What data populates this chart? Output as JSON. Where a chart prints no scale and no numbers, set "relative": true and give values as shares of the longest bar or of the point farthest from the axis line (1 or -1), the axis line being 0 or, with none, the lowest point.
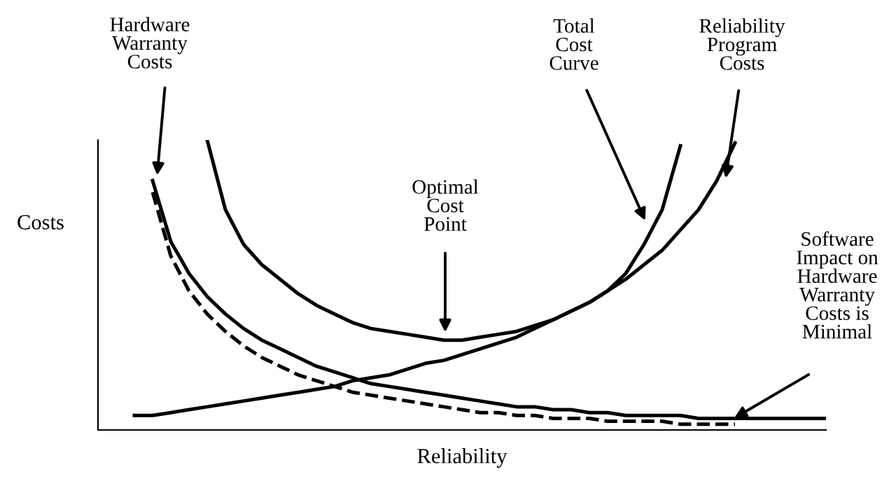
{
  "chart_data": {
    "type": "line",
    "relative": true,
    "xlabel": "Reliability",
    "ylabel": "Costs",
    "legend": false,
    "marker": "none",
    "categories": [
      null,
      null,
      null,
      null,
      null,
      null,
      null,
      null,
      null,
      null,
      null,
      null,
      null,
      null,
      null,
      null,
      null,
      null,
      null,
      null,
      null,
      null,
      null,
      null,
      null,
      null,
      null,
      null,
      null,
      null,
      null,
      null,
      null,
      null,
      null,
      null,
      null,
      null,
      null,
      null,
      null
    ],
    "series": [
      {
        "color": "#000000",
        "line_style": "solid",
        "values": [
          null,
          null,
          null,
          0.86,
          0.65,
          0.54,
          0.46,
          0.4,
          0.35,
          0.31,
          0.28,
          0.25,
          0.22,
          0.2,
          0.18,
          0.16,
          0.15,
          0.14,
          0.13,
          0.12,
          0.11,
          0.1,
          0.09,
          0.08,
          0.08,
          0.07,
          0.07,
          0.06,
          0.06,
          0.05,
          0.05,
          0.05,
          0.05,
          0.04,
          0.04,
          0.04,
          0.04,
          0.04,
          0.04,
          0.04,
          0.04
        ]
      },
      {
        "color": "#000000",
        "line_style": "dashed",
        "values": [
          null,
          null,
          null,
          0.82,
          0.6,
          0.48,
          0.4,
          0.34,
          0.29,
          0.25,
          0.22,
          0.19,
          0.17,
          0.15,
          0.13,
          0.12,
          0.11,
          0.1,
          0.09,
          0.08,
          0.07,
          0.06,
          0.06,
          0.05,
          0.05,
          0.04,
          0.04,
          0.04,
          0.03,
          0.03,
          0.03,
          0.03,
          0.02,
          0.02,
          0.02,
          0.02,
          null,
          null,
          null,
          null,
          null
        ]
      },
      {
        "color": "#000000",
        "line_style": "solid",
        "values": [
          null,
          null,
          0.05,
          0.05,
          0.06,
          0.07,
          0.08,
          0.09,
          0.1,
          0.11,
          0.12,
          0.13,
          0.14,
          0.15,
          0.17,
          0.18,
          0.19,
          0.21,
          0.23,
          0.24,
          0.26,
          0.28,
          0.3,
          0.32,
          0.35,
          0.38,
          0.41,
          0.44,
          0.48,
          0.52,
          0.57,
          0.62,
          0.69,
          0.76,
          0.86,
          0.99,
          null,
          null,
          null,
          null,
          null
        ]
      },
      {
        "color": "#000000",
        "line_style": "solid",
        "values": [
          null,
          null,
          null,
          null,
          null,
          null,
          1.0,
          0.76,
          0.64,
          0.57,
          0.52,
          0.47,
          0.43,
          0.4,
          0.37,
          0.35,
          0.34,
          0.33,
          0.32,
          0.31,
          0.31,
          0.32,
          0.33,
          0.34,
          0.36,
          0.38,
          0.41,
          0.44,
          0.48,
          0.54,
          0.64,
          0.76,
          0.98,
          null,
          null,
          null,
          null,
          null,
          null,
          null,
          null
        ]
      }
    ],
    "annotations": [
      "Hardware\nWarranty\nCosts",
      "Optimal\nCost\nPoint",
      "Total\nCost\nCurve",
      "Reliability\nProgram\nCosts",
      "Software\nImpact on\nHardware\nWarranty\nCosts is\nMinimal"
    ]
  }
}
